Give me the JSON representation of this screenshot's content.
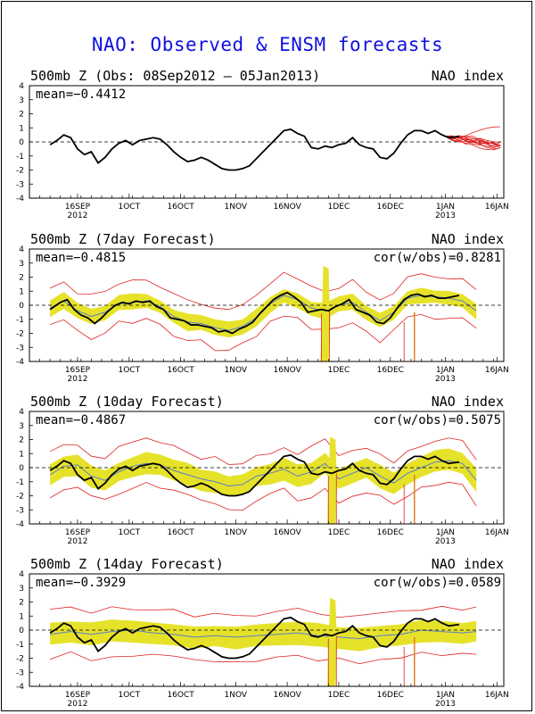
{
  "title": "NAO: Observed & ENSM forecasts",
  "colors": {
    "title": "#1010e0",
    "spread": "#e6e22a",
    "members": "#e02020",
    "observed": "#000000",
    "ensmean": "#5a7fc8",
    "spike": "#e08020"
  },
  "x_ticks": [
    {
      "label": "16SEP",
      "sub": "2012",
      "day": 8
    },
    {
      "label": "1OCT",
      "sub": "",
      "day": 23
    },
    {
      "label": "16OCT",
      "sub": "",
      "day": 38
    },
    {
      "label": "1NOV",
      "sub": "",
      "day": 54
    },
    {
      "label": "16NOV",
      "sub": "",
      "day": 69
    },
    {
      "label": "1DEC",
      "sub": "",
      "day": 84
    },
    {
      "label": "16DEC",
      "sub": "",
      "day": 99
    },
    {
      "label": "1JAN",
      "sub": "2013",
      "day": 115
    },
    {
      "label": "16JAN",
      "sub": "",
      "day": 130
    }
  ],
  "y_ticks": [
    "4",
    "3",
    "2",
    "1",
    "0",
    "-1",
    "-2",
    "-3",
    "-4"
  ],
  "chart_data": [
    {
      "type": "line",
      "title": "500mb Z (Obs: 08Sep2012 – 05Jan2013)",
      "right_label": "NAO index",
      "mean_label": "mean=−0.4412",
      "cor_label": "",
      "ylim": [
        -4,
        4
      ],
      "x_unit": "days since 08Sep2012",
      "observed": [
        [
          0,
          -0.2
        ],
        [
          2,
          0.1
        ],
        [
          4,
          0.5
        ],
        [
          6,
          0.3
        ],
        [
          8,
          -0.5
        ],
        [
          10,
          -0.9
        ],
        [
          12,
          -0.7
        ],
        [
          14,
          -1.5
        ],
        [
          16,
          -1.1
        ],
        [
          18,
          -0.5
        ],
        [
          20,
          -0.1
        ],
        [
          22,
          0.1
        ],
        [
          24,
          -0.2
        ],
        [
          26,
          0.1
        ],
        [
          28,
          0.2
        ],
        [
          30,
          0.3
        ],
        [
          32,
          0.2
        ],
        [
          34,
          -0.2
        ],
        [
          36,
          -0.7
        ],
        [
          38,
          -1.1
        ],
        [
          40,
          -1.4
        ],
        [
          42,
          -1.3
        ],
        [
          44,
          -1.1
        ],
        [
          46,
          -1.3
        ],
        [
          48,
          -1.6
        ],
        [
          50,
          -1.9
        ],
        [
          52,
          -2.0
        ],
        [
          54,
          -2.0
        ],
        [
          56,
          -1.9
        ],
        [
          58,
          -1.7
        ],
        [
          60,
          -1.2
        ],
        [
          62,
          -0.7
        ],
        [
          64,
          -0.2
        ],
        [
          66,
          0.3
        ],
        [
          68,
          0.8
        ],
        [
          70,
          0.9
        ],
        [
          72,
          0.6
        ],
        [
          74,
          0.4
        ],
        [
          76,
          -0.4
        ],
        [
          78,
          -0.5
        ],
        [
          80,
          -0.3
        ],
        [
          82,
          -0.4
        ],
        [
          84,
          -0.2
        ],
        [
          86,
          -0.1
        ],
        [
          88,
          0.3
        ],
        [
          90,
          -0.2
        ],
        [
          92,
          -0.4
        ],
        [
          94,
          -0.5
        ],
        [
          96,
          -1.1
        ],
        [
          98,
          -1.2
        ],
        [
          100,
          -0.8
        ],
        [
          102,
          -0.1
        ],
        [
          104,
          0.5
        ],
        [
          106,
          0.8
        ],
        [
          108,
          0.8
        ],
        [
          110,
          0.6
        ],
        [
          112,
          0.8
        ],
        [
          114,
          0.5
        ],
        [
          116,
          0.3
        ],
        [
          119,
          0.4
        ]
      ],
      "members": true,
      "spread": false
    },
    {
      "type": "line",
      "title": "500mb Z (7day Forecast)",
      "right_label": "NAO index",
      "mean_label": "mean=−0.4815",
      "cor_label": "cor(w/obs)=0.8281",
      "ylim": [
        -4,
        4
      ],
      "x_unit": "days since 08Sep2012",
      "observed": [
        [
          0,
          -0.3
        ],
        [
          3,
          0.2
        ],
        [
          5,
          0.4
        ],
        [
          7,
          -0.3
        ],
        [
          9,
          -0.7
        ],
        [
          11,
          -0.9
        ],
        [
          13,
          -1.3
        ],
        [
          15,
          -0.9
        ],
        [
          17,
          -0.4
        ],
        [
          19,
          0
        ],
        [
          21,
          0.2
        ],
        [
          23,
          0.1
        ],
        [
          25,
          0.3
        ],
        [
          27,
          0.2
        ],
        [
          29,
          0.3
        ],
        [
          31,
          -0.1
        ],
        [
          33,
          -0.3
        ],
        [
          35,
          -0.9
        ],
        [
          37,
          -1.0
        ],
        [
          39,
          -1.1
        ],
        [
          41,
          -1.4
        ],
        [
          43,
          -1.4
        ],
        [
          45,
          -1.5
        ],
        [
          47,
          -1.6
        ],
        [
          49,
          -1.9
        ],
        [
          51,
          -1.8
        ],
        [
          53,
          -2.0
        ],
        [
          55,
          -1.7
        ],
        [
          57,
          -1.5
        ],
        [
          59,
          -1.2
        ],
        [
          61,
          -0.6
        ],
        [
          63,
          -0.1
        ],
        [
          65,
          0.4
        ],
        [
          67,
          0.7
        ],
        [
          69,
          0.9
        ],
        [
          71,
          0.6
        ],
        [
          73,
          0.2
        ],
        [
          75,
          -0.5
        ],
        [
          77,
          -0.4
        ],
        [
          79,
          -0.3
        ],
        [
          81,
          -0.4
        ],
        [
          83,
          -0.1
        ],
        [
          85,
          0.1
        ],
        [
          87,
          0.4
        ],
        [
          89,
          -0.3
        ],
        [
          91,
          -0.5
        ],
        [
          93,
          -0.7
        ],
        [
          95,
          -1.2
        ],
        [
          97,
          -1.3
        ],
        [
          99,
          -0.9
        ],
        [
          101,
          -0.2
        ],
        [
          103,
          0.4
        ],
        [
          105,
          0.7
        ],
        [
          107,
          0.8
        ],
        [
          109,
          0.6
        ],
        [
          111,
          0.7
        ],
        [
          113,
          0.5
        ],
        [
          115,
          0.5
        ],
        [
          117,
          0.6
        ],
        [
          119,
          0.7
        ]
      ],
      "mean": [
        [
          0,
          -0.2
        ],
        [
          4,
          0.3
        ],
        [
          8,
          -0.4
        ],
        [
          12,
          -0.8
        ],
        [
          16,
          -0.5
        ],
        [
          20,
          0.1
        ],
        [
          24,
          0.2
        ],
        [
          28,
          0.3
        ],
        [
          32,
          -0.1
        ],
        [
          36,
          -0.8
        ],
        [
          40,
          -1.2
        ],
        [
          44,
          -1.3
        ],
        [
          48,
          -1.6
        ],
        [
          52,
          -1.8
        ],
        [
          56,
          -1.5
        ],
        [
          60,
          -0.9
        ],
        [
          64,
          0.1
        ],
        [
          68,
          0.7
        ],
        [
          72,
          0.4
        ],
        [
          76,
          -0.2
        ],
        [
          80,
          -0.4
        ],
        [
          84,
          0
        ],
        [
          88,
          0.2
        ],
        [
          92,
          -0.5
        ],
        [
          96,
          -1.1
        ],
        [
          100,
          -0.5
        ],
        [
          104,
          0.5
        ],
        [
          108,
          0.7
        ],
        [
          112,
          0.6
        ],
        [
          116,
          0.5
        ],
        [
          120,
          0.3
        ],
        [
          124,
          -0.4
        ]
      ],
      "spread": true,
      "spread_width": 0.55,
      "spike": {
        "day": 80,
        "top": 2.8,
        "bottom": -4
      }
    },
    {
      "type": "line",
      "title": "500mb Z (10day Forecast)",
      "right_label": "NAO index",
      "mean_label": "mean=−0.4867",
      "cor_label": "cor(w/obs)=0.5075",
      "ylim": [
        -4,
        4
      ],
      "x_unit": "days since 08Sep2012",
      "observed": [
        [
          0,
          -0.2
        ],
        [
          2,
          0.1
        ],
        [
          4,
          0.5
        ],
        [
          6,
          0.3
        ],
        [
          8,
          -0.5
        ],
        [
          10,
          -0.9
        ],
        [
          12,
          -0.7
        ],
        [
          14,
          -1.5
        ],
        [
          16,
          -1.1
        ],
        [
          18,
          -0.5
        ],
        [
          20,
          -0.1
        ],
        [
          22,
          0.1
        ],
        [
          24,
          -0.2
        ],
        [
          26,
          0.1
        ],
        [
          28,
          0.2
        ],
        [
          30,
          0.3
        ],
        [
          32,
          0.2
        ],
        [
          34,
          -0.2
        ],
        [
          36,
          -0.7
        ],
        [
          38,
          -1.1
        ],
        [
          40,
          -1.4
        ],
        [
          42,
          -1.3
        ],
        [
          44,
          -1.1
        ],
        [
          46,
          -1.3
        ],
        [
          48,
          -1.6
        ],
        [
          50,
          -1.9
        ],
        [
          52,
          -2.0
        ],
        [
          54,
          -2.0
        ],
        [
          56,
          -1.9
        ],
        [
          58,
          -1.7
        ],
        [
          60,
          -1.2
        ],
        [
          62,
          -0.7
        ],
        [
          64,
          -0.2
        ],
        [
          66,
          0.3
        ],
        [
          68,
          0.8
        ],
        [
          70,
          0.9
        ],
        [
          72,
          0.6
        ],
        [
          74,
          0.4
        ],
        [
          76,
          -0.4
        ],
        [
          78,
          -0.5
        ],
        [
          80,
          -0.3
        ],
        [
          82,
          -0.4
        ],
        [
          84,
          -0.2
        ],
        [
          86,
          -0.1
        ],
        [
          88,
          0.3
        ],
        [
          90,
          -0.2
        ],
        [
          92,
          -0.4
        ],
        [
          94,
          -0.5
        ],
        [
          96,
          -1.1
        ],
        [
          98,
          -1.2
        ],
        [
          100,
          -0.8
        ],
        [
          102,
          -0.1
        ],
        [
          104,
          0.5
        ],
        [
          106,
          0.8
        ],
        [
          108,
          0.8
        ],
        [
          110,
          0.6
        ],
        [
          112,
          0.8
        ],
        [
          114,
          0.5
        ],
        [
          116,
          0.3
        ],
        [
          119,
          0.4
        ]
      ],
      "mean": [
        [
          0,
          -0.5
        ],
        [
          4,
          0.1
        ],
        [
          8,
          0.2
        ],
        [
          12,
          -0.6
        ],
        [
          16,
          -0.9
        ],
        [
          20,
          -0.3
        ],
        [
          24,
          0.1
        ],
        [
          28,
          0.3
        ],
        [
          32,
          0.2
        ],
        [
          36,
          -0.2
        ],
        [
          40,
          -0.5
        ],
        [
          44,
          -0.8
        ],
        [
          48,
          -1.0
        ],
        [
          52,
          -1.3
        ],
        [
          56,
          -1.2
        ],
        [
          60,
          -0.6
        ],
        [
          64,
          -0.4
        ],
        [
          68,
          -0.1
        ],
        [
          72,
          -0.6
        ],
        [
          76,
          -0.3
        ],
        [
          80,
          0.3
        ],
        [
          84,
          -0.8
        ],
        [
          88,
          -0.4
        ],
        [
          92,
          0
        ],
        [
          96,
          -0.6
        ],
        [
          100,
          -1.1
        ],
        [
          104,
          -0.4
        ],
        [
          108,
          0
        ],
        [
          112,
          0.4
        ],
        [
          116,
          0.5
        ],
        [
          120,
          0.3
        ],
        [
          124,
          -0.9
        ]
      ],
      "spread": true,
      "spread_width": 0.75,
      "spike": {
        "day": 82,
        "top": 2.2,
        "bottom": -4
      }
    },
    {
      "type": "line",
      "title": "500mb Z (14day Forecast)",
      "right_label": "NAO index",
      "mean_label": "mean=−0.3929",
      "cor_label": "cor(w/obs)=0.0589",
      "ylim": [
        -4,
        4
      ],
      "x_unit": "days since 08Sep2012",
      "observed": [
        [
          0,
          -0.2
        ],
        [
          2,
          0.1
        ],
        [
          4,
          0.5
        ],
        [
          6,
          0.3
        ],
        [
          8,
          -0.5
        ],
        [
          10,
          -0.9
        ],
        [
          12,
          -0.7
        ],
        [
          14,
          -1.5
        ],
        [
          16,
          -1.1
        ],
        [
          18,
          -0.5
        ],
        [
          20,
          -0.1
        ],
        [
          22,
          0.1
        ],
        [
          24,
          -0.2
        ],
        [
          26,
          0.1
        ],
        [
          28,
          0.2
        ],
        [
          30,
          0.3
        ],
        [
          32,
          0.2
        ],
        [
          34,
          -0.2
        ],
        [
          36,
          -0.7
        ],
        [
          38,
          -1.1
        ],
        [
          40,
          -1.4
        ],
        [
          42,
          -1.3
        ],
        [
          44,
          -1.1
        ],
        [
          46,
          -1.3
        ],
        [
          48,
          -1.6
        ],
        [
          50,
          -1.9
        ],
        [
          52,
          -2.0
        ],
        [
          54,
          -2.0
        ],
        [
          56,
          -1.9
        ],
        [
          58,
          -1.7
        ],
        [
          60,
          -1.2
        ],
        [
          62,
          -0.7
        ],
        [
          64,
          -0.2
        ],
        [
          66,
          0.3
        ],
        [
          68,
          0.8
        ],
        [
          70,
          0.9
        ],
        [
          72,
          0.6
        ],
        [
          74,
          0.4
        ],
        [
          76,
          -0.4
        ],
        [
          78,
          -0.5
        ],
        [
          80,
          -0.3
        ],
        [
          82,
          -0.4
        ],
        [
          84,
          -0.2
        ],
        [
          86,
          -0.1
        ],
        [
          88,
          0.3
        ],
        [
          90,
          -0.2
        ],
        [
          92,
          -0.4
        ],
        [
          94,
          -0.5
        ],
        [
          96,
          -1.1
        ],
        [
          98,
          -1.2
        ],
        [
          100,
          -0.8
        ],
        [
          102,
          -0.1
        ],
        [
          104,
          0.5
        ],
        [
          106,
          0.8
        ],
        [
          108,
          0.8
        ],
        [
          110,
          0.6
        ],
        [
          112,
          0.8
        ],
        [
          114,
          0.5
        ],
        [
          116,
          0.3
        ],
        [
          119,
          0.4
        ]
      ],
      "mean": [
        [
          0,
          -0.3
        ],
        [
          6,
          -0.1
        ],
        [
          12,
          -0.3
        ],
        [
          18,
          -0.1
        ],
        [
          24,
          0
        ],
        [
          30,
          -0.2
        ],
        [
          36,
          -0.3
        ],
        [
          42,
          -0.5
        ],
        [
          48,
          -0.4
        ],
        [
          54,
          -0.5
        ],
        [
          60,
          -0.4
        ],
        [
          66,
          -0.3
        ],
        [
          72,
          -0.2
        ],
        [
          78,
          -0.4
        ],
        [
          84,
          -0.5
        ],
        [
          90,
          -0.6
        ],
        [
          96,
          -0.4
        ],
        [
          102,
          -0.3
        ],
        [
          108,
          0
        ],
        [
          114,
          -0.1
        ],
        [
          120,
          -0.2
        ],
        [
          124,
          -0.1
        ]
      ],
      "spread": true,
      "spread_width": 0.8,
      "spike": {
        "day": 82,
        "top": 2.3,
        "bottom": -4
      }
    }
  ]
}
